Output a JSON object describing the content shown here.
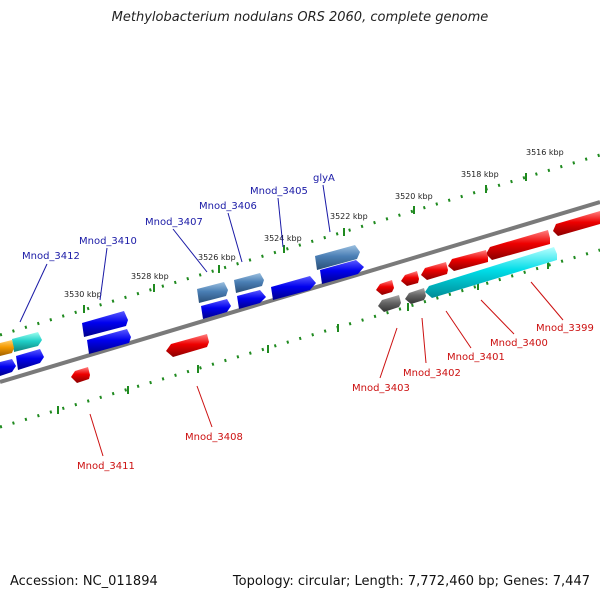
{
  "title": "Methylobacterium nodulans ORS 2060, complete genome",
  "footer": {
    "accession": "Accession: NC_011894",
    "summary": "Topology: circular; Length: 7,772,460 bp; Genes: 7,447"
  },
  "colors": {
    "backbone": "#7a7a7a",
    "ticks": "#1f8a1f",
    "forward_label": "#1a1aa6",
    "reverse_label": "#cc1010"
  },
  "scale_labels": [
    "3516 kbp",
    "3518 kbp",
    "3520 kbp",
    "3522 kbp",
    "3524 kbp",
    "3526 kbp",
    "3528 kbp",
    "3530 kbp"
  ],
  "forward_labels": [
    "Mnod_3412",
    "Mnod_3410",
    "Mnod_3407",
    "Mnod_3406",
    "Mnod_3405",
    "glyA"
  ],
  "reverse_labels": [
    "Mnod_3399",
    "Mnod_3400",
    "Mnod_3401",
    "Mnod_3402",
    "Mnod_3403",
    "Mnod_3408",
    "Mnod_3411"
  ]
}
